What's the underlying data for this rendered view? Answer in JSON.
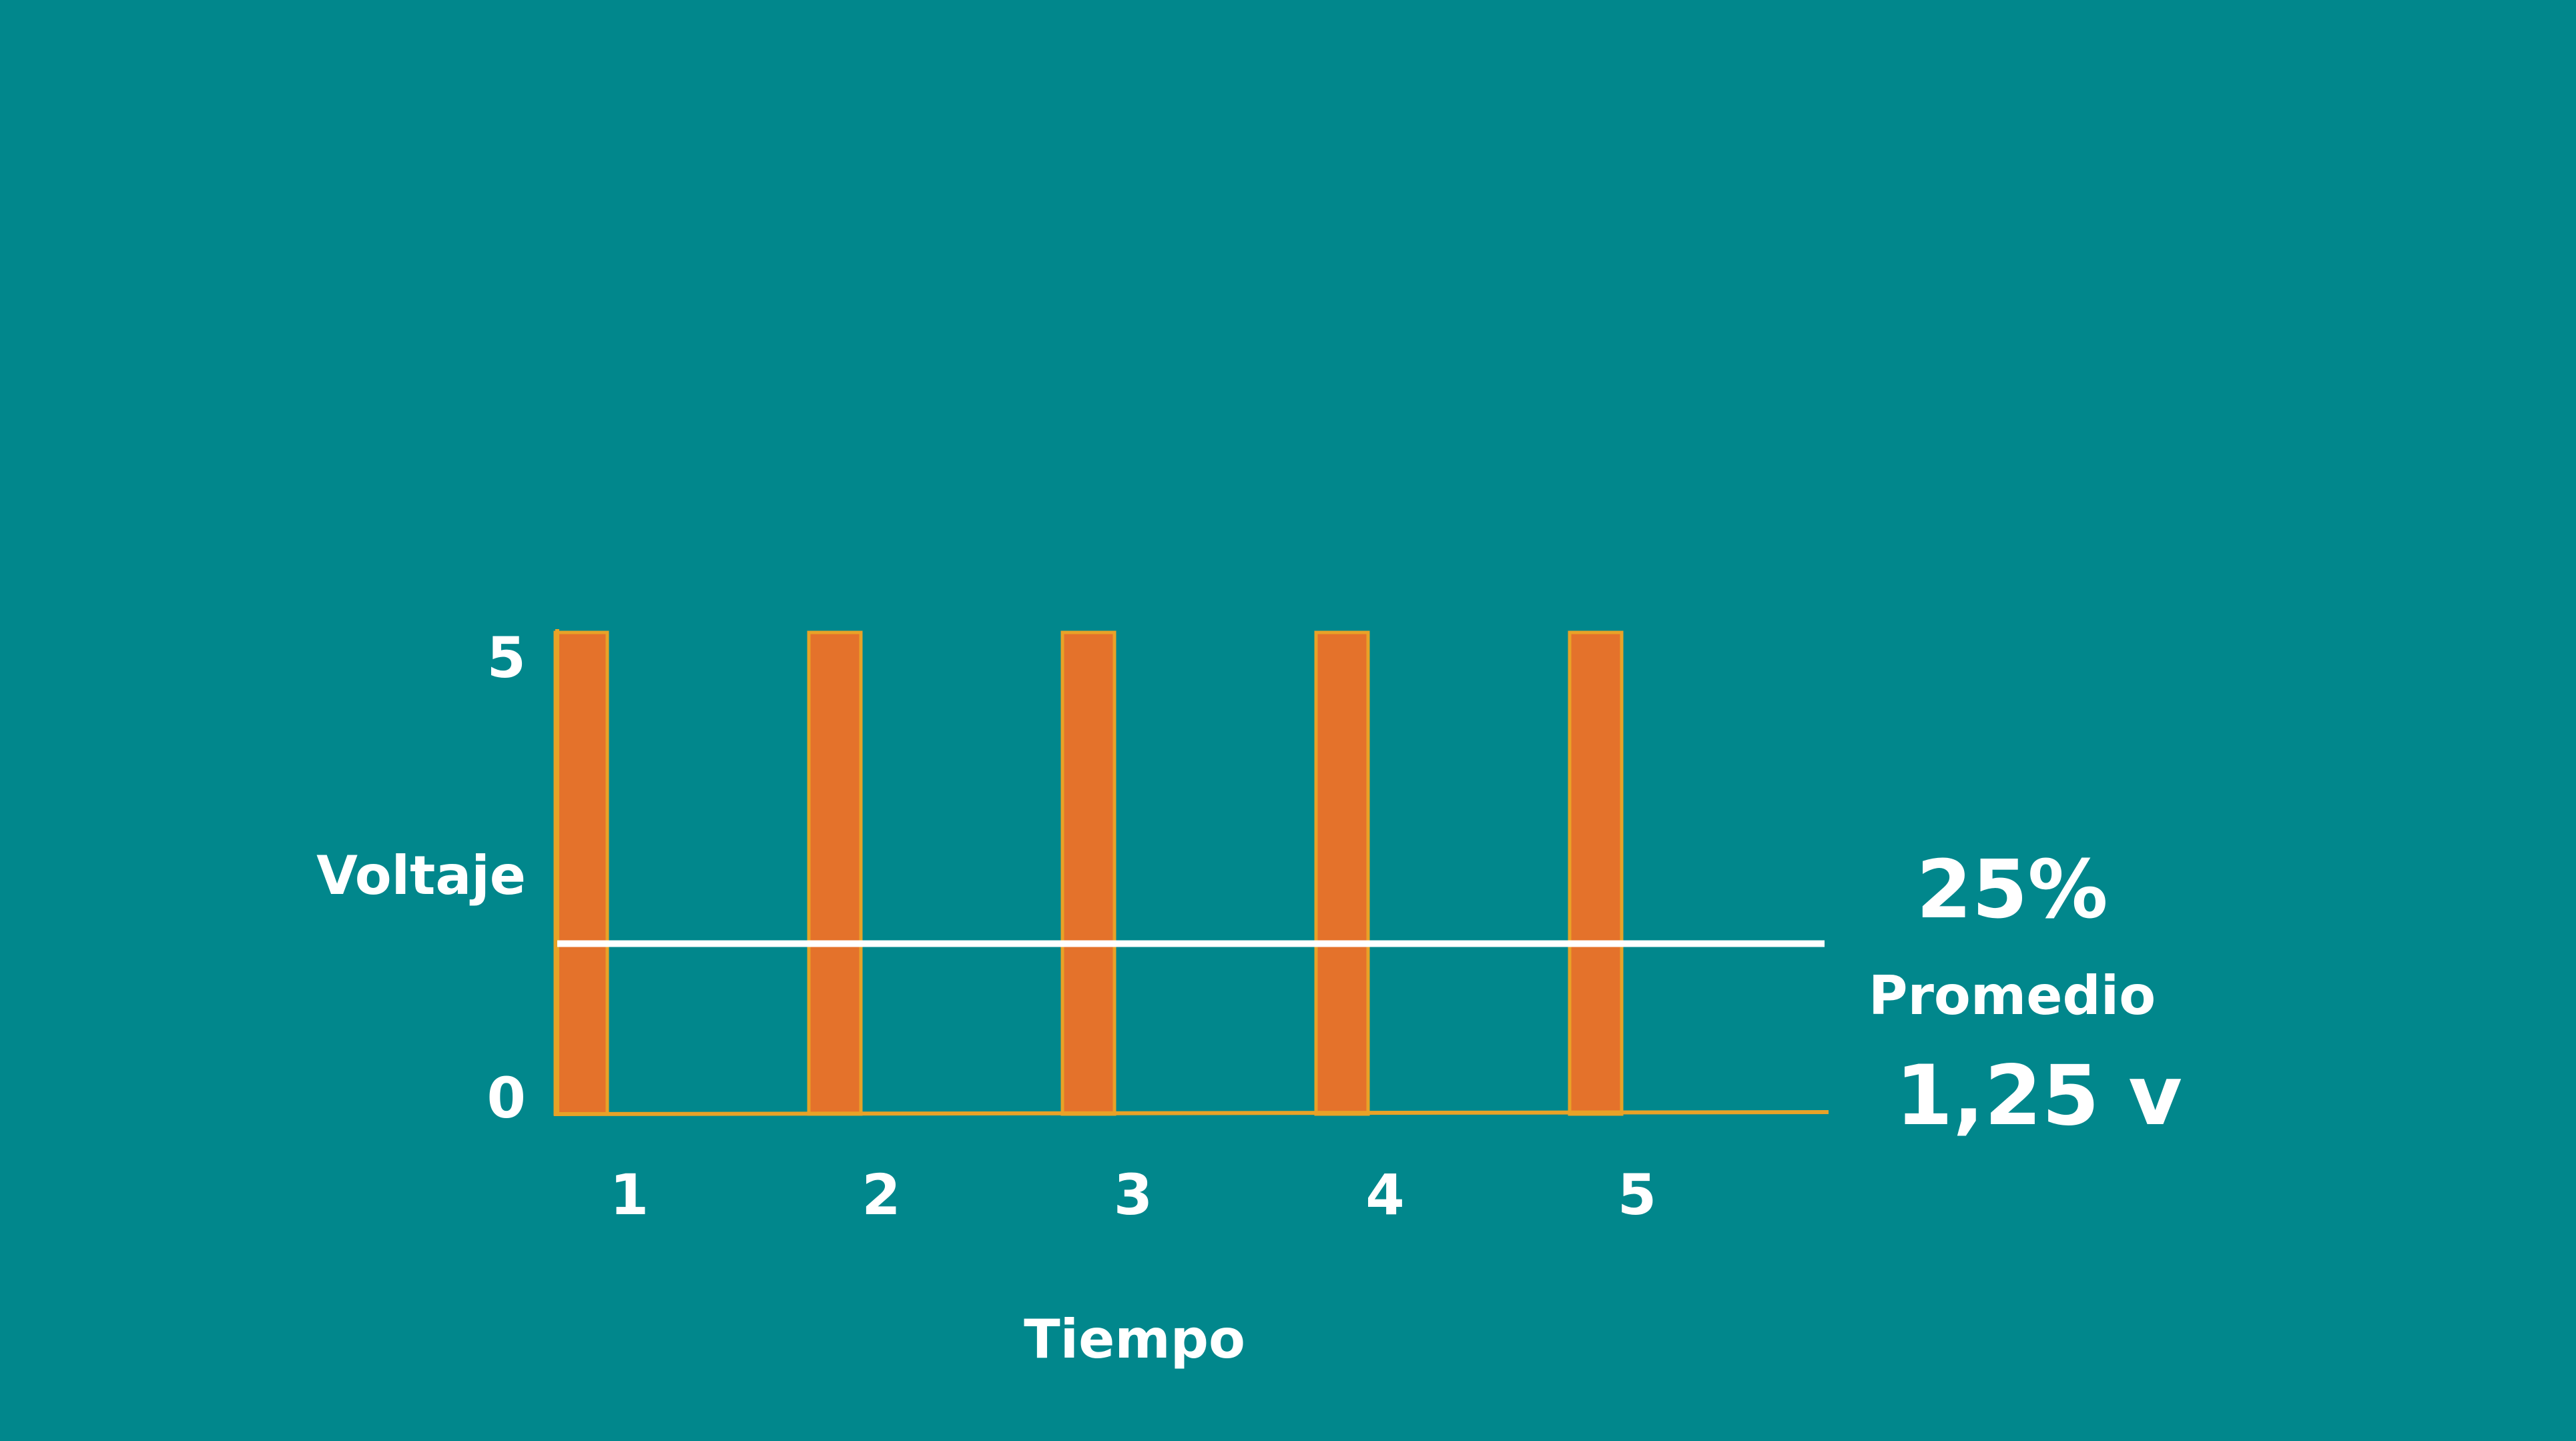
{
  "chart_data": {
    "type": "bar",
    "title": "",
    "xlabel": "Tiempo",
    "ylabel": "Voltaje",
    "categories": [
      "1",
      "2",
      "3",
      "4",
      "5"
    ],
    "values": [
      5,
      5,
      5,
      5,
      5
    ],
    "y_ticks": [
      "5",
      "0"
    ],
    "ylim": [
      0,
      5
    ],
    "average_line": {
      "value": 1.25,
      "label": "Promedio",
      "percent_text": "25%",
      "value_text": "1,25 v"
    },
    "grid": false
  },
  "colors": {
    "background": "#01878c",
    "bar_fill": "#e4722b",
    "bar_stroke": "#e8a227",
    "axis": "#e8a227",
    "average_line": "#ffffff",
    "text": "#ffffff"
  }
}
